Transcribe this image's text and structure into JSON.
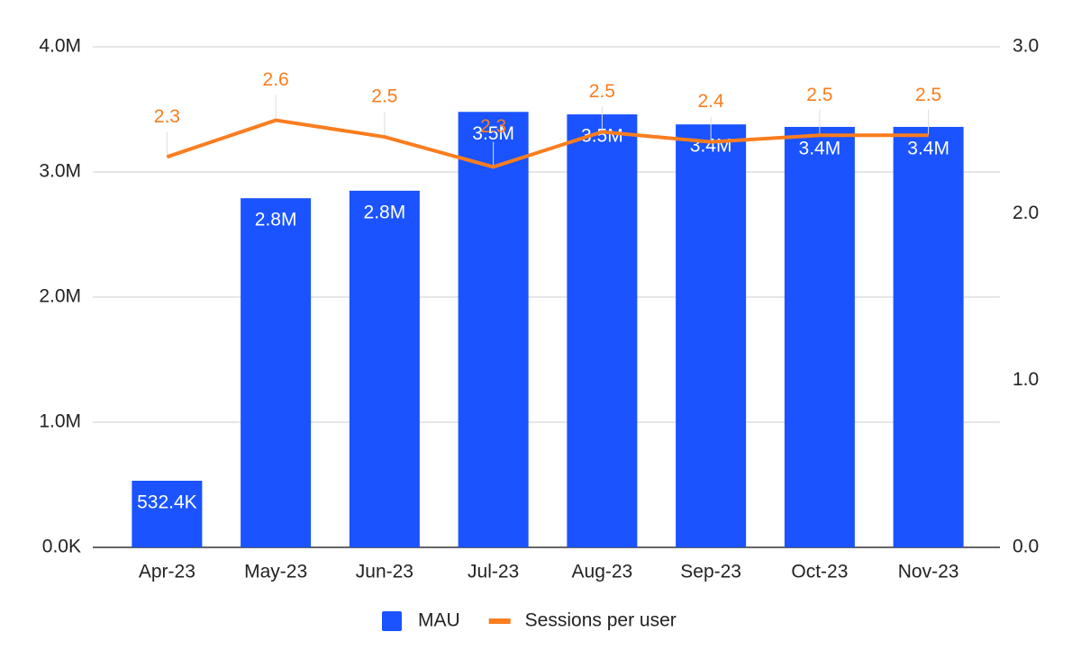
{
  "chart_data": {
    "type": "bar-line",
    "categories": [
      "Apr-23",
      "May-23",
      "Jun-23",
      "Jul-23",
      "Aug-23",
      "Sep-23",
      "Oct-23",
      "Nov-23"
    ],
    "series": [
      {
        "name": "MAU",
        "type": "bar",
        "color": "#1a53ff",
        "axis": "y",
        "values": [
          532400,
          2790000,
          2850000,
          3480000,
          3460000,
          3380000,
          3360000,
          3360000
        ],
        "value_labels": [
          "532.4K",
          "2.8M",
          "2.8M",
          "3.5M",
          "3.5M",
          "3.4M",
          "3.4M",
          "3.4M"
        ]
      },
      {
        "name": "Sessions per user",
        "type": "line",
        "color": "#fa7d1e",
        "axis": "y2",
        "values": [
          2.34,
          2.56,
          2.46,
          2.28,
          2.49,
          2.43,
          2.47,
          2.47
        ],
        "value_labels": [
          "2.3",
          "2.6",
          "2.5",
          "2.3",
          "2.5",
          "2.4",
          "2.5",
          "2.5"
        ]
      }
    ],
    "ylim": [
      0,
      4000000
    ],
    "yticks": [
      {
        "value": 0,
        "label": "0.0K"
      },
      {
        "value": 1000000,
        "label": "1.0M"
      },
      {
        "value": 2000000,
        "label": "2.0M"
      },
      {
        "value": 3000000,
        "label": "3.0M"
      },
      {
        "value": 4000000,
        "label": "4.0M"
      }
    ],
    "y2lim": [
      0,
      3
    ],
    "y2ticks": [
      {
        "value": 0,
        "label": "0.0"
      },
      {
        "value": 1,
        "label": "1.0"
      },
      {
        "value": 2,
        "label": "2.0"
      },
      {
        "value": 3,
        "label": "3.0"
      }
    ],
    "grid": true,
    "legend": "bottom"
  }
}
